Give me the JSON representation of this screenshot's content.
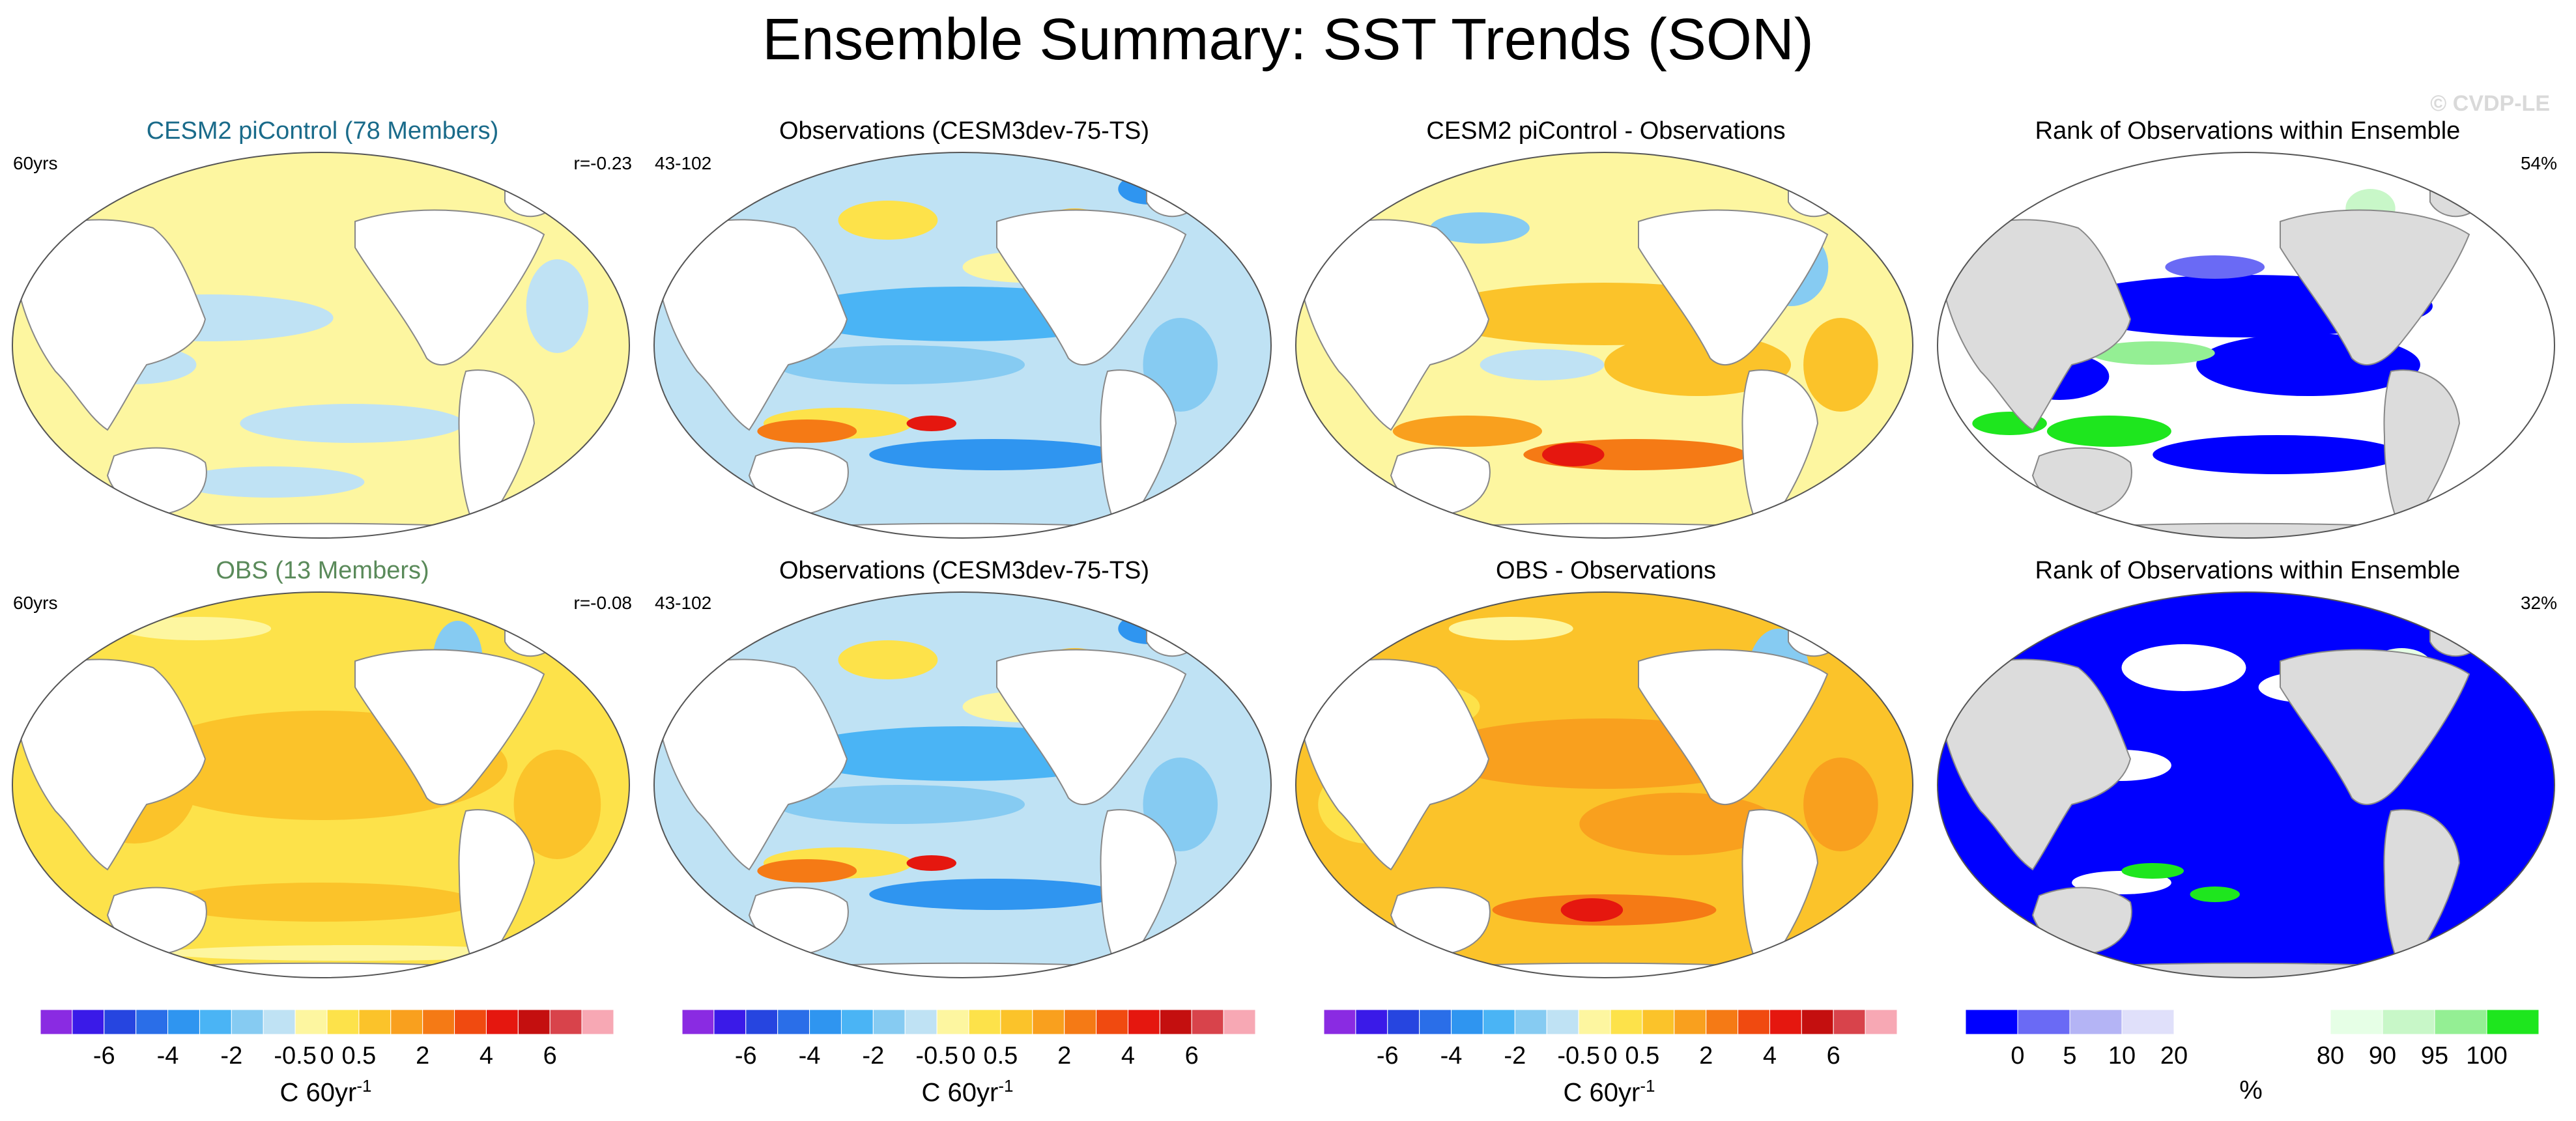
{
  "title": "Ensemble Summary: SST Trends (SON)",
  "watermark": "© CVDP-LE",
  "rows": [
    {
      "panels": [
        {
          "title": "CESM2 piControl (78 Members)",
          "title_color": "#1a6b8a",
          "left_text": "60yrs",
          "right_text": "r=-0.23",
          "palette": "pi"
        },
        {
          "title": "Observations (CESM3dev-75-TS)",
          "title_color": "#000000",
          "left_text": "43-102",
          "right_text": "",
          "palette": "obs"
        },
        {
          "title": "CESM2 piControl - Observations",
          "title_color": "#000000",
          "left_text": "",
          "right_text": "",
          "palette": "diff"
        },
        {
          "title": "Rank of Observations within Ensemble",
          "title_color": "#000000",
          "left_text": "",
          "right_text": "54%",
          "palette": "rank1"
        }
      ]
    },
    {
      "panels": [
        {
          "title": "OBS (13 Members)",
          "title_color": "#5a8a5a",
          "left_text": "60yrs",
          "right_text": "r=-0.08",
          "palette": "obsens"
        },
        {
          "title": "Observations (CESM3dev-75-TS)",
          "title_color": "#000000",
          "left_text": "43-102",
          "right_text": "",
          "palette": "obs"
        },
        {
          "title": "OBS - Observations",
          "title_color": "#000000",
          "left_text": "",
          "right_text": "",
          "palette": "diff2"
        },
        {
          "title": "Rank of Observations within Ensemble",
          "title_color": "#000000",
          "left_text": "",
          "right_text": "32%",
          "palette": "rank2"
        }
      ]
    }
  ],
  "colorbars": [
    {
      "label": "C 60yr",
      "label_sup": "-1",
      "colors": [
        "#8a2be2",
        "#3a1ae8",
        "#2645e0",
        "#2a6ee8",
        "#2f95f0",
        "#4ab4f5",
        "#86cbf2",
        "#bfe2f4",
        "#fdf6a0",
        "#fde24a",
        "#fbc32a",
        "#f9a01e",
        "#f57a15",
        "#f04a10",
        "#e5170f",
        "#c40f0f",
        "#d8434b",
        "#f7a8b4"
      ],
      "ticks": [
        "-6",
        "-4",
        "-2",
        "-0.5",
        "0",
        "0.5",
        "2",
        "4",
        "6"
      ]
    },
    {
      "label": "C 60yr",
      "label_sup": "-1",
      "colors": [
        "#8a2be2",
        "#3a1ae8",
        "#2645e0",
        "#2a6ee8",
        "#2f95f0",
        "#4ab4f5",
        "#86cbf2",
        "#bfe2f4",
        "#fdf6a0",
        "#fde24a",
        "#fbc32a",
        "#f9a01e",
        "#f57a15",
        "#f04a10",
        "#e5170f",
        "#c40f0f",
        "#d8434b",
        "#f7a8b4"
      ],
      "ticks": [
        "-6",
        "-4",
        "-2",
        "-0.5",
        "0",
        "0.5",
        "2",
        "4",
        "6"
      ]
    },
    {
      "label": "C 60yr",
      "label_sup": "-1",
      "colors": [
        "#8a2be2",
        "#3a1ae8",
        "#2645e0",
        "#2a6ee8",
        "#2f95f0",
        "#4ab4f5",
        "#86cbf2",
        "#bfe2f4",
        "#fdf6a0",
        "#fde24a",
        "#fbc32a",
        "#f9a01e",
        "#f57a15",
        "#f04a10",
        "#e5170f",
        "#c40f0f",
        "#d8434b",
        "#f7a8b4"
      ],
      "ticks": [
        "-6",
        "-4",
        "-2",
        "-0.5",
        "0",
        "0.5",
        "2",
        "4",
        "6"
      ]
    },
    {
      "label": "%",
      "label_sup": "",
      "colors": [
        "#0000ff",
        "#6a6af5",
        "#b4b4f5",
        "#e0e0fa",
        "#ffffff",
        "#ffffff",
        "#ffffff",
        "#e6ffe6",
        "#c8f7c8",
        "#94ef94",
        "#1ee61e"
      ],
      "ticks": [
        "0",
        "5",
        "10",
        "20",
        "80",
        "90",
        "95",
        "100"
      ]
    }
  ],
  "colors": {
    "land": "#ffffff",
    "rank_land": "#dcdcdc",
    "outline": "#888888"
  }
}
